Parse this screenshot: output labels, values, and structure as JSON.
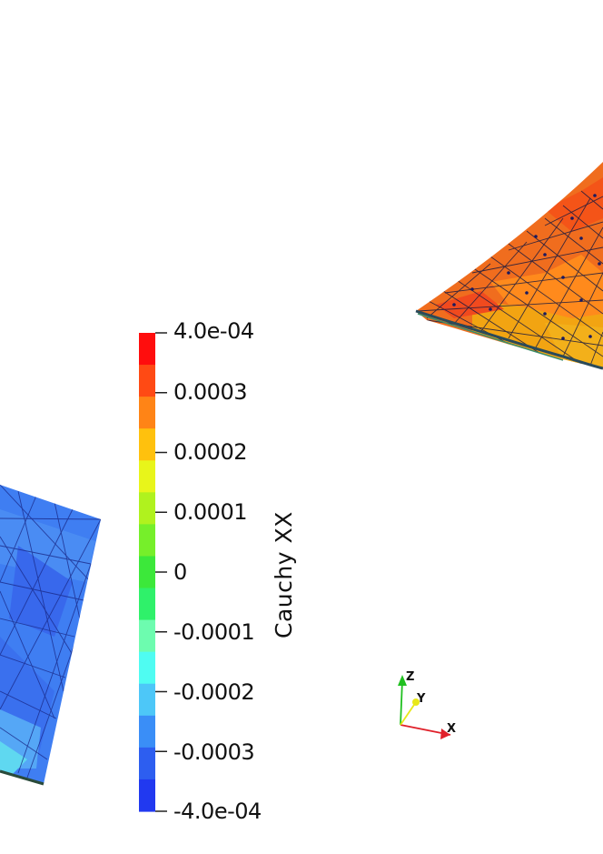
{
  "colorbar": {
    "title": "Cauchy XX",
    "ticks": [
      "4.0e-04",
      "0.0003",
      "0.0002",
      "0.0001",
      "0",
      "-0.0001",
      "-0.0002",
      "-0.0003",
      "-4.0e-04"
    ],
    "bands": [
      "#ff0d0d",
      "#ff4a14",
      "#ff8416",
      "#ffc10d",
      "#e8f51a",
      "#b0f21e",
      "#76ef2a",
      "#3ce83a",
      "#2ff16a",
      "#6dfcaf",
      "#4ffcf2",
      "#4dc7f8",
      "#3a8ef7",
      "#2d5ef0",
      "#2139f0"
    ]
  },
  "orientation_axes": {
    "x_label": "X",
    "y_label": "Y",
    "z_label": "Z",
    "x_color": "#e0202a",
    "y_color": "#e8e818",
    "z_color": "#20c020"
  },
  "colors": {
    "mesh_high": "#ff5a1e",
    "mesh_low": "#3f80f2"
  }
}
